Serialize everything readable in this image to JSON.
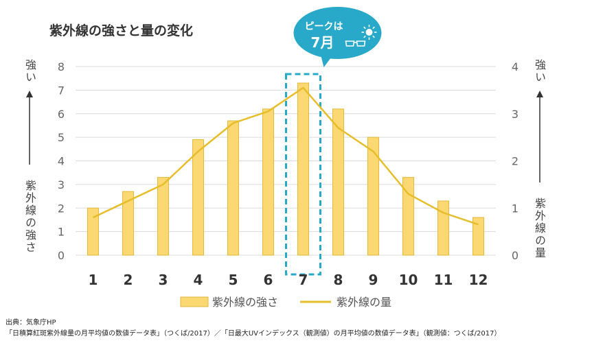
{
  "chart_data": {
    "type": "bar+line",
    "title": "紫外線の強さと量の変化",
    "categories": [
      "1",
      "2",
      "3",
      "4",
      "5",
      "6",
      "7",
      "8",
      "9",
      "10",
      "11",
      "12"
    ],
    "series": [
      {
        "name": "紫外線の強さ",
        "type": "bar",
        "axis": "left",
        "values": [
          2.0,
          2.7,
          3.3,
          4.9,
          5.7,
          6.2,
          7.3,
          6.2,
          5.0,
          3.3,
          2.3,
          1.6
        ],
        "color": "#fbd871"
      },
      {
        "name": "紫外線の量",
        "type": "line",
        "axis": "right",
        "values": [
          0.8,
          1.15,
          1.5,
          2.2,
          2.8,
          3.05,
          3.55,
          2.7,
          2.2,
          1.3,
          0.9,
          0.65
        ],
        "color": "#e6bd2a"
      }
    ],
    "y_left": {
      "min": 0,
      "max": 8,
      "ticks": [
        0,
        1,
        2,
        3,
        4,
        5,
        6,
        7,
        8
      ],
      "label_top": "強い",
      "label_bottom": "紫外線の強さ"
    },
    "y_right": {
      "min": 0,
      "max": 4,
      "ticks": [
        0,
        1,
        2,
        3,
        4
      ],
      "label_top": "強い",
      "label_bottom": "紫外線の量"
    },
    "grid": true,
    "legend_position": "bottom",
    "highlight": {
      "category": "7",
      "callout_line1": "ピークは",
      "callout_line2": "7月"
    },
    "colors": {
      "accent": "#29a9c9",
      "grid": "#d9d9d9",
      "axis_text": "#666666"
    }
  },
  "source": {
    "line1": "出典：気象庁HP",
    "line2": "「日積算紅斑紫外線量の月平均値の数値データ表」（つくば/2017）／「日最大UVインデックス（観測値）の月平均値の数値データ表」（観測値：つくば/2017）"
  }
}
